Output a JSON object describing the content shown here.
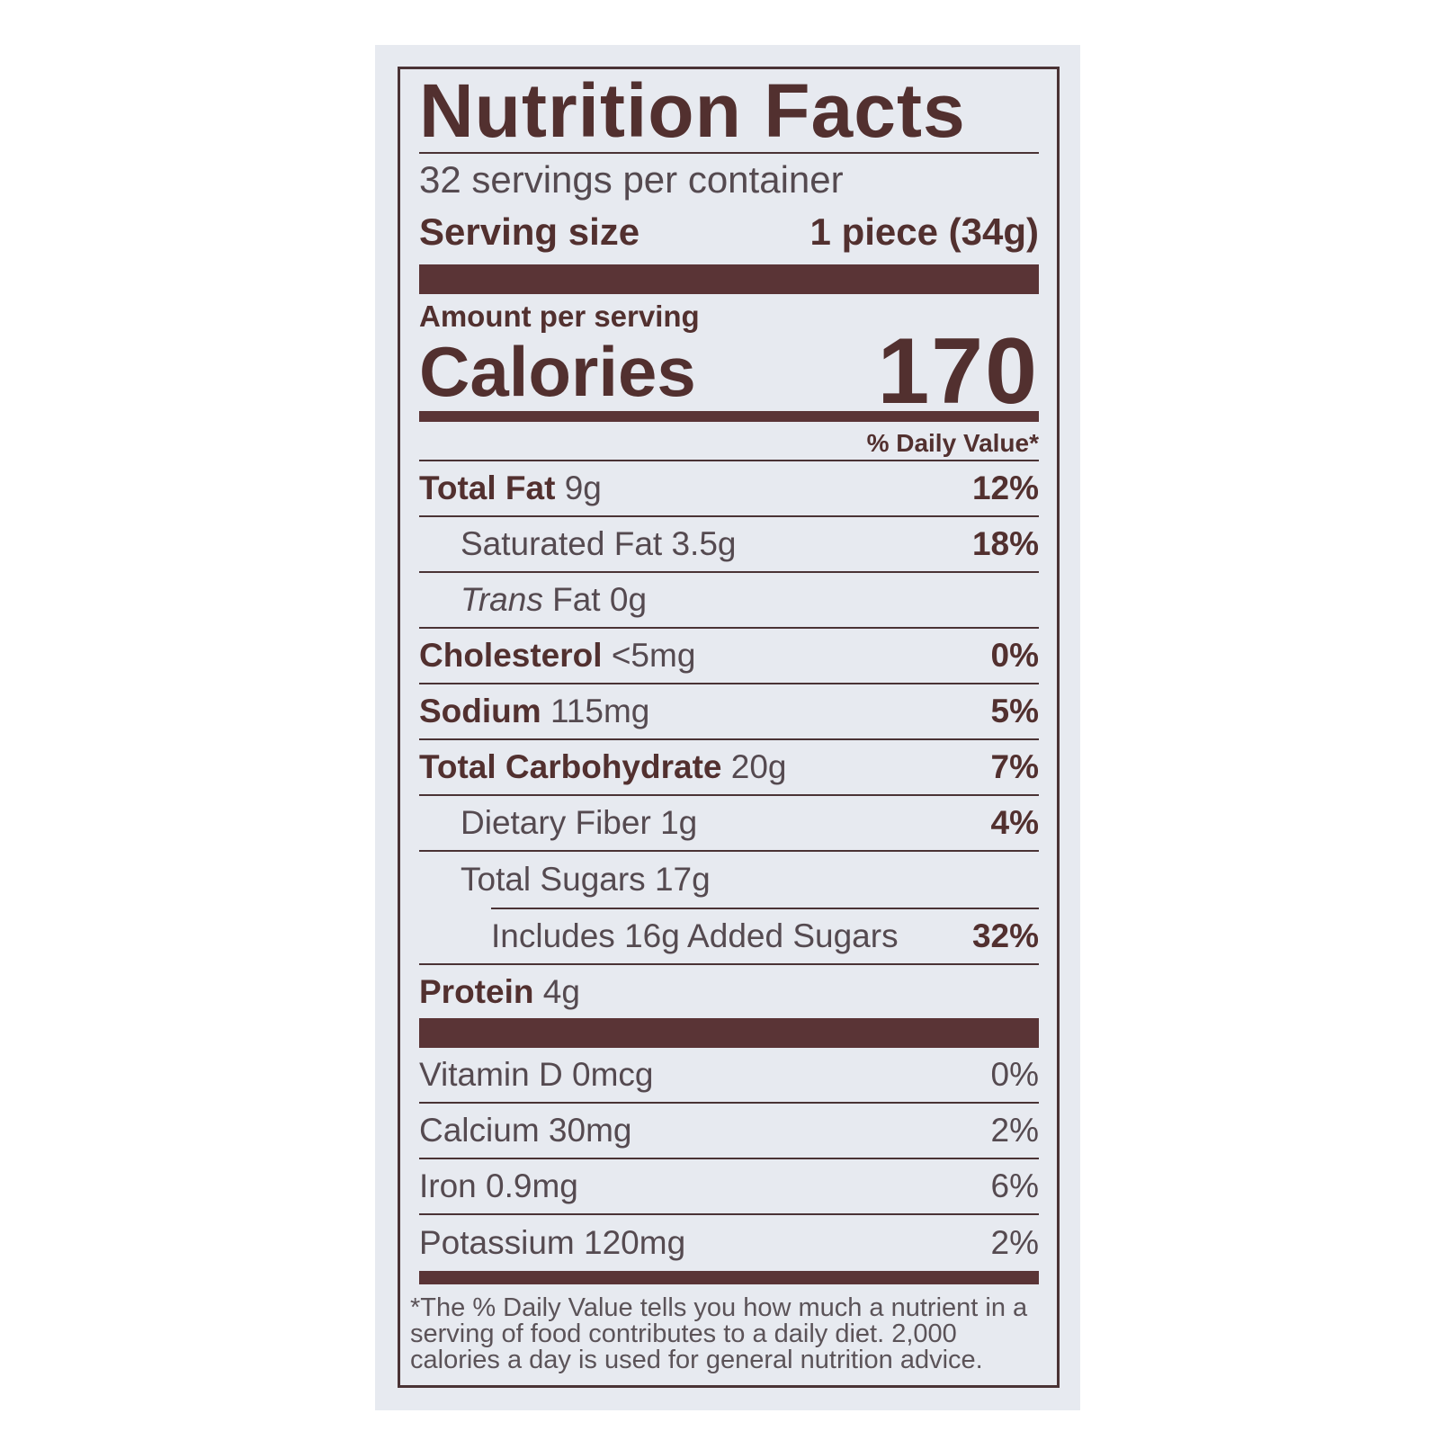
{
  "title": "Nutrition Facts",
  "servings_per_container": "32 servings per container",
  "serving_size": {
    "label": "Serving size",
    "value": "1 piece (34g)"
  },
  "amount_per_serving": "Amount per serving",
  "calories": {
    "label": "Calories",
    "value": "170"
  },
  "daily_value_header": "% Daily Value*",
  "nutrients": [
    {
      "name": "Total Fat",
      "amount": "9g",
      "dv": "12%"
    },
    {
      "name": "Saturated Fat",
      "amount": "3.5g",
      "dv": "18%"
    },
    {
      "name": "Trans",
      "name_rest": "Fat",
      "amount": "0g",
      "dv": ""
    },
    {
      "name": "Cholesterol",
      "amount": "<5mg",
      "dv": "0%"
    },
    {
      "name": "Sodium",
      "amount": "115mg",
      "dv": "5%"
    },
    {
      "name": "Total Carbohydrate",
      "amount": "20g",
      "dv": "7%"
    },
    {
      "name": "Dietary Fiber",
      "amount": "1g",
      "dv": "4%"
    },
    {
      "name": "Total Sugars",
      "amount": "17g",
      "dv": ""
    },
    {
      "name": "Includes 16g Added Sugars",
      "amount": "",
      "dv": "32%"
    },
    {
      "name": "Protein",
      "amount": "4g",
      "dv": ""
    }
  ],
  "vitamins": [
    {
      "label": "Vitamin D 0mcg",
      "dv": "0%"
    },
    {
      "label": "Calcium 30mg",
      "dv": "2%"
    },
    {
      "label": "Iron 0.9mg",
      "dv": "6%"
    },
    {
      "label": "Potassium 120mg",
      "dv": "2%"
    }
  ],
  "footnote": "*The % Daily Value tells you how much a nutrient in a serving of food contributes to a daily diet. 2,000 calories a day is used for general nutrition advice.",
  "colors": {
    "text": "#52302f",
    "panel": "#e7eaf0",
    "bars": "#5a3436"
  }
}
